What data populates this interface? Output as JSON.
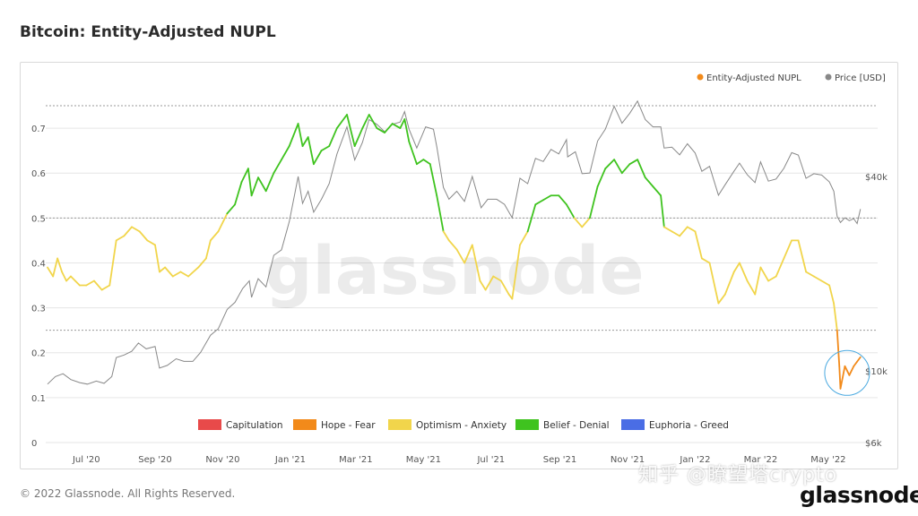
{
  "page": {
    "title": "Bitcoin: Entity-Adjusted NUPL",
    "copyright": "© 2022 Glassnode. All Rights Reserved.",
    "overlay_text": "知乎 @瞭望塔crypto",
    "brand_logo": "glassnode",
    "watermark": "glassnode"
  },
  "colors": {
    "capitulation": "#e84a4a",
    "hope_fear": "#f28a1a",
    "optimism_anxiety": "#f1d54b",
    "belief_denial": "#3fc31f",
    "euphoria_greed": "#4a6de5",
    "price": "#888888",
    "grid": "#e6e6e6",
    "dashed": "#999999",
    "highlight_circle": "#4aa9e0"
  },
  "chart_data": {
    "type": "line",
    "title": "Bitcoin: Entity-Adjusted NUPL",
    "x_ticks": [
      "Jul '20",
      "Sep '20",
      "Nov '20",
      "Jan '21",
      "Mar '21",
      "May '21",
      "Jul '21",
      "Sep '21",
      "Nov '21",
      "Jan '22",
      "Mar '22",
      "May '22"
    ],
    "x_range": [
      "2020-05-27",
      "2022-05-31"
    ],
    "y_left": {
      "ticks": [
        "0",
        "0.1",
        "0.2",
        "0.3",
        "0.4",
        "0.5",
        "0.6",
        "0.7"
      ],
      "range": [
        0,
        0.75
      ]
    },
    "y_right": {
      "ticks": [
        "$6k",
        "$10k",
        "$40k"
      ],
      "scale": "log"
    },
    "legend_top": [
      {
        "name": "Entity-Adjusted NUPL",
        "color": "#f28a1a"
      },
      {
        "name": "Price [USD]",
        "color": "#888888"
      }
    ],
    "legend_zones": [
      {
        "name": "Capitulation",
        "color": "#e84a4a"
      },
      {
        "name": "Hope - Fear",
        "color": "#f28a1a"
      },
      {
        "name": "Optimism - Anxiety",
        "color": "#f1d54b"
      },
      {
        "name": "Belief - Denial",
        "color": "#3fc31f"
      },
      {
        "name": "Euphoria - Greed",
        "color": "#4a6de5"
      }
    ],
    "zone_thresholds": [
      0.25,
      0.5,
      0.75
    ],
    "series": [
      {
        "name": "Entity-Adjusted NUPL",
        "points": [
          [
            "2020-05-27",
            0.39
          ],
          [
            "2020-06-01",
            0.37
          ],
          [
            "2020-06-05",
            0.41
          ],
          [
            "2020-06-09",
            0.38
          ],
          [
            "2020-06-13",
            0.36
          ],
          [
            "2020-06-17",
            0.37
          ],
          [
            "2020-06-21",
            0.36
          ],
          [
            "2020-06-25",
            0.35
          ],
          [
            "2020-07-01",
            0.35
          ],
          [
            "2020-07-08",
            0.36
          ],
          [
            "2020-07-15",
            0.34
          ],
          [
            "2020-07-22",
            0.35
          ],
          [
            "2020-07-28",
            0.45
          ],
          [
            "2020-08-04",
            0.46
          ],
          [
            "2020-08-11",
            0.48
          ],
          [
            "2020-08-18",
            0.47
          ],
          [
            "2020-08-25",
            0.45
          ],
          [
            "2020-09-01",
            0.44
          ],
          [
            "2020-09-05",
            0.38
          ],
          [
            "2020-09-10",
            0.39
          ],
          [
            "2020-09-17",
            0.37
          ],
          [
            "2020-09-24",
            0.38
          ],
          [
            "2020-10-01",
            0.37
          ],
          [
            "2020-10-10",
            0.39
          ],
          [
            "2020-10-17",
            0.41
          ],
          [
            "2020-10-21",
            0.45
          ],
          [
            "2020-10-28",
            0.47
          ],
          [
            "2020-11-05",
            0.51
          ],
          [
            "2020-11-12",
            0.53
          ],
          [
            "2020-11-18",
            0.58
          ],
          [
            "2020-11-24",
            0.61
          ],
          [
            "2020-11-27",
            0.55
          ],
          [
            "2020-12-03",
            0.59
          ],
          [
            "2020-12-10",
            0.56
          ],
          [
            "2020-12-17",
            0.6
          ],
          [
            "2020-12-24",
            0.63
          ],
          [
            "2020-12-31",
            0.66
          ],
          [
            "2021-01-08",
            0.71
          ],
          [
            "2021-01-12",
            0.66
          ],
          [
            "2021-01-17",
            0.68
          ],
          [
            "2021-01-22",
            0.62
          ],
          [
            "2021-01-29",
            0.65
          ],
          [
            "2021-02-05",
            0.66
          ],
          [
            "2021-02-12",
            0.7
          ],
          [
            "2021-02-21",
            0.73
          ],
          [
            "2021-02-28",
            0.66
          ],
          [
            "2021-03-07",
            0.7
          ],
          [
            "2021-03-13",
            0.73
          ],
          [
            "2021-03-20",
            0.7
          ],
          [
            "2021-03-27",
            0.69
          ],
          [
            "2021-04-03",
            0.71
          ],
          [
            "2021-04-10",
            0.7
          ],
          [
            "2021-04-14",
            0.72
          ],
          [
            "2021-04-18",
            0.67
          ],
          [
            "2021-04-25",
            0.62
          ],
          [
            "2021-05-01",
            0.63
          ],
          [
            "2021-05-07",
            0.62
          ],
          [
            "2021-05-13",
            0.55
          ],
          [
            "2021-05-19",
            0.47
          ],
          [
            "2021-05-24",
            0.45
          ],
          [
            "2021-05-31",
            0.43
          ],
          [
            "2021-06-07",
            0.4
          ],
          [
            "2021-06-14",
            0.44
          ],
          [
            "2021-06-21",
            0.36
          ],
          [
            "2021-06-26",
            0.34
          ],
          [
            "2021-07-03",
            0.37
          ],
          [
            "2021-07-10",
            0.36
          ],
          [
            "2021-07-17",
            0.33
          ],
          [
            "2021-07-20",
            0.32
          ],
          [
            "2021-07-27",
            0.44
          ],
          [
            "2021-08-03",
            0.47
          ],
          [
            "2021-08-10",
            0.53
          ],
          [
            "2021-08-17",
            0.54
          ],
          [
            "2021-08-24",
            0.55
          ],
          [
            "2021-08-31",
            0.55
          ],
          [
            "2021-09-07",
            0.53
          ],
          [
            "2021-09-14",
            0.5
          ],
          [
            "2021-09-21",
            0.48
          ],
          [
            "2021-09-28",
            0.5
          ],
          [
            "2021-10-05",
            0.57
          ],
          [
            "2021-10-12",
            0.61
          ],
          [
            "2021-10-20",
            0.63
          ],
          [
            "2021-10-27",
            0.6
          ],
          [
            "2021-11-03",
            0.62
          ],
          [
            "2021-11-10",
            0.63
          ],
          [
            "2021-11-17",
            0.59
          ],
          [
            "2021-11-24",
            0.57
          ],
          [
            "2021-12-01",
            0.55
          ],
          [
            "2021-12-04",
            0.48
          ],
          [
            "2021-12-11",
            0.47
          ],
          [
            "2021-12-18",
            0.46
          ],
          [
            "2021-12-25",
            0.48
          ],
          [
            "2022-01-01",
            0.47
          ],
          [
            "2022-01-07",
            0.41
          ],
          [
            "2022-01-14",
            0.4
          ],
          [
            "2022-01-22",
            0.31
          ],
          [
            "2022-01-28",
            0.33
          ],
          [
            "2022-02-05",
            0.38
          ],
          [
            "2022-02-10",
            0.4
          ],
          [
            "2022-02-17",
            0.36
          ],
          [
            "2022-02-24",
            0.33
          ],
          [
            "2022-03-01",
            0.39
          ],
          [
            "2022-03-08",
            0.36
          ],
          [
            "2022-03-15",
            0.37
          ],
          [
            "2022-03-22",
            0.41
          ],
          [
            "2022-03-29",
            0.45
          ],
          [
            "2022-04-04",
            0.45
          ],
          [
            "2022-04-11",
            0.38
          ],
          [
            "2022-04-18",
            0.37
          ],
          [
            "2022-04-25",
            0.36
          ],
          [
            "2022-05-02",
            0.35
          ],
          [
            "2022-05-06",
            0.31
          ],
          [
            "2022-05-09",
            0.25
          ],
          [
            "2022-05-11",
            0.17
          ],
          [
            "2022-05-12",
            0.12
          ],
          [
            "2022-05-16",
            0.17
          ],
          [
            "2022-05-20",
            0.15
          ],
          [
            "2022-05-24",
            0.17
          ],
          [
            "2022-05-27",
            0.18
          ],
          [
            "2022-05-30",
            0.19
          ]
        ]
      },
      {
        "name": "Price [USD]",
        "points": [
          [
            "2020-05-27",
            9100
          ],
          [
            "2020-06-03",
            9600
          ],
          [
            "2020-06-10",
            9800
          ],
          [
            "2020-06-17",
            9400
          ],
          [
            "2020-06-25",
            9200
          ],
          [
            "2020-07-02",
            9100
          ],
          [
            "2020-07-10",
            9300
          ],
          [
            "2020-07-17",
            9150
          ],
          [
            "2020-07-24",
            9600
          ],
          [
            "2020-07-28",
            11000
          ],
          [
            "2020-08-04",
            11200
          ],
          [
            "2020-08-11",
            11500
          ],
          [
            "2020-08-17",
            12200
          ],
          [
            "2020-08-24",
            11700
          ],
          [
            "2020-09-01",
            11900
          ],
          [
            "2020-09-05",
            10200
          ],
          [
            "2020-09-12",
            10400
          ],
          [
            "2020-09-20",
            10900
          ],
          [
            "2020-09-27",
            10700
          ],
          [
            "2020-10-05",
            10700
          ],
          [
            "2020-10-12",
            11400
          ],
          [
            "2020-10-21",
            12900
          ],
          [
            "2020-10-28",
            13500
          ],
          [
            "2020-11-05",
            15500
          ],
          [
            "2020-11-12",
            16300
          ],
          [
            "2020-11-19",
            18000
          ],
          [
            "2020-11-25",
            19000
          ],
          [
            "2020-11-27",
            16900
          ],
          [
            "2020-12-03",
            19300
          ],
          [
            "2020-12-10",
            18200
          ],
          [
            "2020-12-17",
            22800
          ],
          [
            "2020-12-24",
            23700
          ],
          [
            "2020-12-31",
            29000
          ],
          [
            "2021-01-08",
            40000
          ],
          [
            "2021-01-12",
            33000
          ],
          [
            "2021-01-17",
            36000
          ],
          [
            "2021-01-22",
            31000
          ],
          [
            "2021-01-29",
            34000
          ],
          [
            "2021-02-05",
            38000
          ],
          [
            "2021-02-12",
            47000
          ],
          [
            "2021-02-21",
            57000
          ],
          [
            "2021-02-28",
            45000
          ],
          [
            "2021-03-07",
            51000
          ],
          [
            "2021-03-13",
            60000
          ],
          [
            "2021-03-20",
            58000
          ],
          [
            "2021-03-27",
            55000
          ],
          [
            "2021-04-03",
            58000
          ],
          [
            "2021-04-10",
            59000
          ],
          [
            "2021-04-14",
            63500
          ],
          [
            "2021-04-18",
            56000
          ],
          [
            "2021-04-25",
            49000
          ],
          [
            "2021-05-03",
            57000
          ],
          [
            "2021-05-10",
            56000
          ],
          [
            "2021-05-13",
            49500
          ],
          [
            "2021-05-19",
            37000
          ],
          [
            "2021-05-24",
            34000
          ],
          [
            "2021-05-31",
            36000
          ],
          [
            "2021-06-07",
            33500
          ],
          [
            "2021-06-14",
            40000
          ],
          [
            "2021-06-22",
            32000
          ],
          [
            "2021-06-28",
            34000
          ],
          [
            "2021-07-06",
            34000
          ],
          [
            "2021-07-13",
            32800
          ],
          [
            "2021-07-20",
            29800
          ],
          [
            "2021-07-27",
            39500
          ],
          [
            "2021-08-03",
            38000
          ],
          [
            "2021-08-10",
            45500
          ],
          [
            "2021-08-17",
            44500
          ],
          [
            "2021-08-24",
            48500
          ],
          [
            "2021-08-31",
            47000
          ],
          [
            "2021-09-07",
            52000
          ],
          [
            "2021-09-08",
            46000
          ],
          [
            "2021-09-15",
            47700
          ],
          [
            "2021-09-21",
            40800
          ],
          [
            "2021-09-28",
            41000
          ],
          [
            "2021-10-05",
            51500
          ],
          [
            "2021-10-12",
            56000
          ],
          [
            "2021-10-20",
            66000
          ],
          [
            "2021-10-27",
            58500
          ],
          [
            "2021-11-03",
            62800
          ],
          [
            "2021-11-10",
            68500
          ],
          [
            "2021-11-17",
            60000
          ],
          [
            "2021-11-24",
            57000
          ],
          [
            "2021-12-01",
            57000
          ],
          [
            "2021-12-04",
            49000
          ],
          [
            "2021-12-11",
            49300
          ],
          [
            "2021-12-18",
            46700
          ],
          [
            "2021-12-25",
            50500
          ],
          [
            "2022-01-01",
            47300
          ],
          [
            "2022-01-07",
            41500
          ],
          [
            "2022-01-14",
            43000
          ],
          [
            "2022-01-22",
            35000
          ],
          [
            "2022-01-28",
            37700
          ],
          [
            "2022-02-05",
            41500
          ],
          [
            "2022-02-10",
            44000
          ],
          [
            "2022-02-17",
            40500
          ],
          [
            "2022-02-24",
            38300
          ],
          [
            "2022-03-01",
            44400
          ],
          [
            "2022-03-08",
            38700
          ],
          [
            "2022-03-15",
            39300
          ],
          [
            "2022-03-22",
            42400
          ],
          [
            "2022-03-29",
            47400
          ],
          [
            "2022-04-04",
            46600
          ],
          [
            "2022-04-11",
            39500
          ],
          [
            "2022-04-18",
            40800
          ],
          [
            "2022-04-25",
            40400
          ],
          [
            "2022-05-02",
            38500
          ],
          [
            "2022-05-06",
            36000
          ],
          [
            "2022-05-09",
            30100
          ],
          [
            "2022-05-12",
            28800
          ],
          [
            "2022-05-16",
            29800
          ],
          [
            "2022-05-20",
            29200
          ],
          [
            "2022-05-24",
            29600
          ],
          [
            "2022-05-27",
            28600
          ],
          [
            "2022-05-30",
            31700
          ]
        ]
      }
    ]
  }
}
